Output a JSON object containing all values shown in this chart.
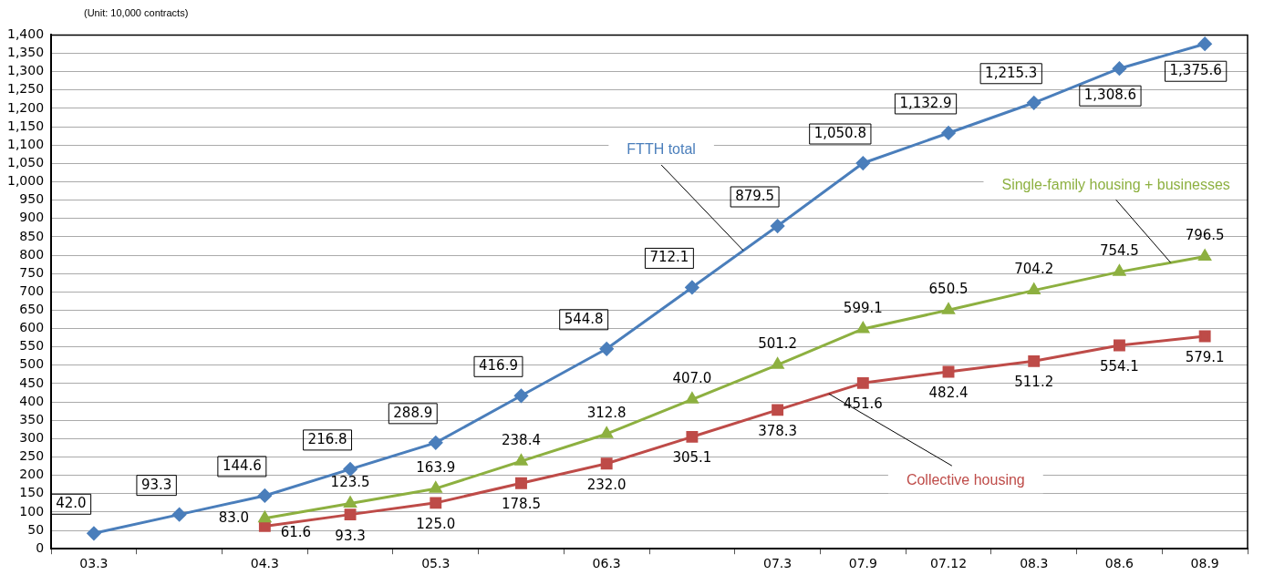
{
  "chart_data": {
    "type": "line",
    "annotations": [
      "(Unit: 10,000 contracts)"
    ],
    "categories": [
      "03.3",
      null,
      "04.3",
      null,
      "05.3",
      null,
      "06.3",
      null,
      "07.3",
      "07.9",
      "07.12",
      "08.3",
      "08.6",
      "08.9"
    ],
    "series": [
      {
        "name": "FTTH total",
        "color": "#4a7ebb",
        "marker": "diamond",
        "values": [
          42.0,
          93.3,
          144.6,
          216.8,
          288.9,
          416.9,
          544.8,
          712.1,
          879.5,
          1050.8,
          1132.9,
          1215.3,
          1308.6,
          1375.6
        ],
        "value_labels": [
          "42.0",
          "93.3",
          "144.6",
          "216.8",
          "288.9",
          "416.9",
          "544.8",
          "712.1",
          "879.5",
          "1,050.8",
          "1,132.9",
          "1,215.3",
          "1,308.6",
          "1,375.6"
        ]
      },
      {
        "name": "Single-family housing + businesses",
        "color": "#8db040",
        "marker": "triangle",
        "values": [
          null,
          null,
          83.0,
          123.5,
          163.9,
          238.4,
          312.8,
          407.0,
          501.2,
          599.1,
          650.5,
          704.2,
          754.5,
          796.5
        ],
        "value_labels": [
          null,
          null,
          "83.0",
          "123.5",
          "163.9",
          "238.4",
          "312.8",
          "407.0",
          "501.2",
          "599.1",
          "650.5",
          "704.2",
          "754.5",
          "796.5"
        ]
      },
      {
        "name": "Collective housing",
        "color": "#be4b48",
        "marker": "square",
        "values": [
          null,
          null,
          61.6,
          93.3,
          125.0,
          178.5,
          232.0,
          305.1,
          378.3,
          451.6,
          482.4,
          511.2,
          554.1,
          579.1
        ],
        "value_labels": [
          null,
          null,
          "61.6",
          "93.3",
          "125.0",
          "178.5",
          "232.0",
          "305.1",
          "378.3",
          "451.6",
          "482.4",
          "511.2",
          "554.1",
          "579.1"
        ]
      }
    ],
    "ylim": [
      0,
      1400
    ],
    "yticks": [
      0,
      50,
      100,
      150,
      200,
      250,
      300,
      350,
      400,
      450,
      500,
      550,
      600,
      650,
      700,
      750,
      800,
      850,
      900,
      950,
      {
        "value": 1000,
        "label": "1,000"
      },
      {
        "value": 1050,
        "label": "1,050"
      },
      {
        "value": 1100,
        "label": "1,100"
      },
      {
        "value": 1150,
        "label": "1,150"
      },
      {
        "value": 1200,
        "label": "1,200"
      },
      {
        "value": 1250,
        "label": "1,250"
      },
      {
        "value": 1300,
        "label": "1,300"
      },
      {
        "value": 1350,
        "label": "1,350"
      },
      {
        "value": 1400,
        "label": "1,400"
      }
    ],
    "grid": "y",
    "legend": false,
    "line_style": "solid"
  }
}
